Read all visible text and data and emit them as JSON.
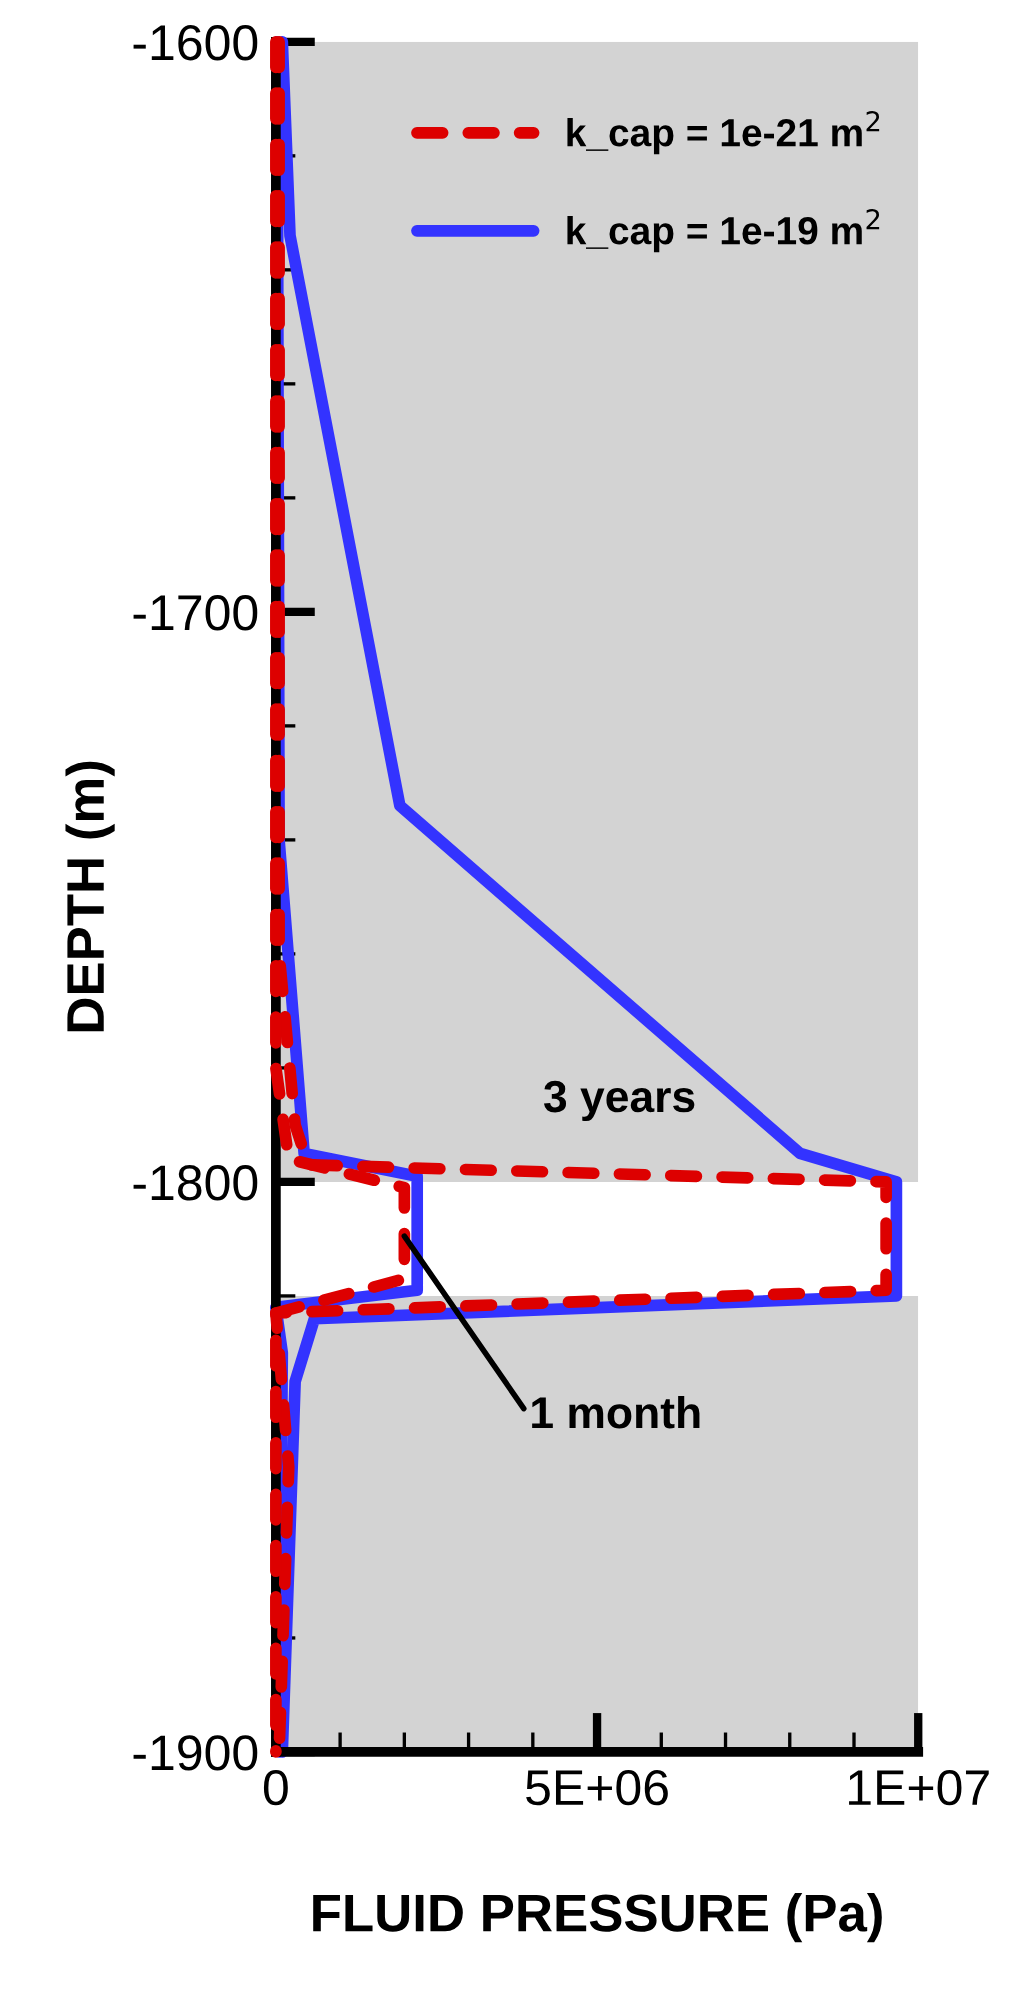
{
  "chart_data": {
    "type": "line",
    "xlabel": "FLUID PRESSURE (Pa)",
    "ylabel": "DEPTH (m)",
    "xlim": [
      0,
      10000000.0
    ],
    "ylim": [
      -1900,
      -1600
    ],
    "xticks": [
      0,
      {
        "value": 1000000.0,
        "label": null
      },
      {
        "value": 2000000.0,
        "label": null
      },
      {
        "value": 3000000.0,
        "label": null
      },
      {
        "value": 4000000.0,
        "label": null
      },
      {
        "value": 5000000.0,
        "label": "5E+06"
      },
      {
        "value": 6000000.0,
        "label": null
      },
      {
        "value": 7000000.0,
        "label": null
      },
      {
        "value": 8000000.0,
        "label": null
      },
      {
        "value": 9000000.0,
        "label": null
      },
      {
        "value": 10000000.0,
        "label": "1E+07"
      }
    ],
    "yticks": [
      -1900,
      {
        "value": -1880,
        "label": null
      },
      {
        "value": -1860,
        "label": null
      },
      {
        "value": -1840,
        "label": null
      },
      {
        "value": -1820,
        "label": null
      },
      -1800,
      {
        "value": -1780,
        "label": null
      },
      {
        "value": -1760,
        "label": null
      },
      {
        "value": -1740,
        "label": null
      },
      {
        "value": -1720,
        "label": null
      },
      -1700,
      {
        "value": -1680,
        "label": null
      },
      {
        "value": -1660,
        "label": null
      },
      {
        "value": -1640,
        "label": null
      },
      {
        "value": -1620,
        "label": null
      },
      -1600
    ],
    "grid": false,
    "legend": "top right",
    "bands": [
      {
        "axis": "y",
        "from": -1900,
        "to": -1820,
        "color": "#d3d3d3"
      },
      {
        "axis": "y",
        "from": -1800,
        "to": -1600,
        "color": "#d3d3d3"
      }
    ],
    "series": [
      {
        "color": "#3333ff",
        "line_style": "solid",
        "x": [
          100000.0,
          220000.0,
          1930000.0,
          8160000.0,
          9660000.0,
          9660000.0,
          600000.0,
          300000.0,
          100000.0
        ],
        "values": [
          -1600,
          -1634,
          -1734,
          -1795,
          -1800,
          -1820,
          -1824,
          -1835,
          -1900
        ]
      },
      {
        "name": "k_cap = 1e-19 m$^{2}$",
        "color": "#3333ff",
        "line_style": "solid",
        "x": [
          20000.0,
          50000.0,
          440000.0,
          2200000.0,
          2200000.0,
          0,
          100000.0,
          50000.0
        ],
        "values": [
          -1600,
          -1740,
          -1795,
          -1799,
          -1819,
          -1822,
          -1830,
          -1900
        ]
      },
      {
        "color": "#dd0000",
        "line_style": "dashed",
        "x": [
          50000.0,
          50000.0,
          300000.0,
          500000.0,
          9500000.0,
          9500000.0,
          0,
          200000.0,
          50000.0
        ],
        "values": [
          -1600,
          -1760,
          -1790,
          -1797,
          -1800,
          -1819,
          -1823,
          -1850,
          -1900
        ]
      },
      {
        "name": "k_cap = 1e-21 m$^{2}$",
        "color": "#dd0000",
        "line_style": "dashed",
        "x": [
          0,
          0,
          200000.0,
          2000000.0,
          2000000.0,
          0,
          0
        ],
        "values": [
          -1600,
          -1780,
          -1796,
          -1801,
          -1817,
          -1823,
          -1900
        ]
      }
    ],
    "annotations": [
      "3 years",
      {
        "text": "1 month",
        "x": 2000000.0,
        "y": -1809.5
      }
    ]
  }
}
